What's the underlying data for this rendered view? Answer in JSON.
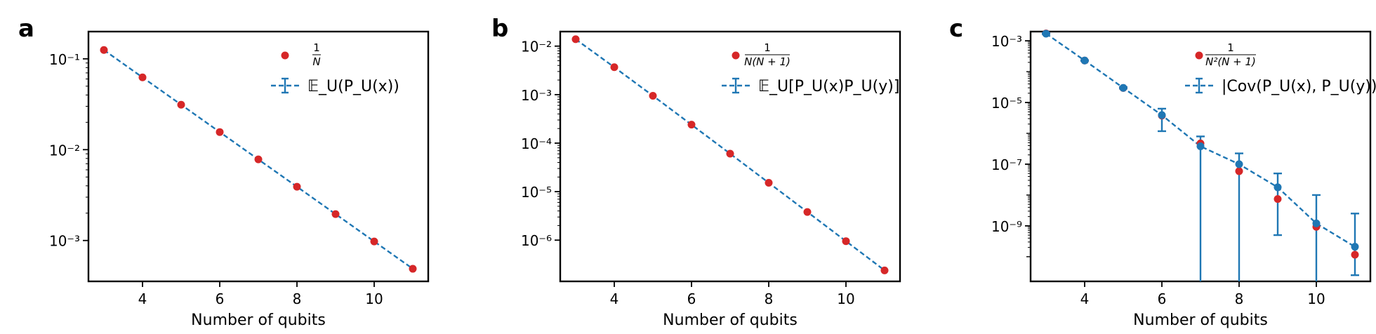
{
  "colors": {
    "dot": "#d62728",
    "line": "#1f77b4",
    "axis": "#000000"
  },
  "chart_data": [
    {
      "panel_label": "a",
      "type": "scatter",
      "yscale": "log",
      "xlabel": "Number of qubits",
      "ylabel": "",
      "xlim": [
        2.6,
        11.4
      ],
      "ylim_exp": [
        -3.45,
        -0.7
      ],
      "xticks": [
        4,
        6,
        8,
        10
      ],
      "ytick_exps": [
        -1,
        -2,
        -3
      ],
      "legend": {
        "placement": "top-right",
        "dots_label_num": "1",
        "dots_label_den": "N",
        "line_label": "𝔼_U(P_U(x))"
      },
      "series": [
        {
          "kind": "theory-dots",
          "x": [
            3,
            4,
            5,
            6,
            7,
            8,
            9,
            10,
            11
          ],
          "y": [
            0.125,
            0.0625,
            0.03125,
            0.015625,
            0.0078125,
            0.00390625,
            0.001953125,
            0.0009765625,
            0.00048828125
          ]
        },
        {
          "kind": "measured-dashed",
          "x": [
            3,
            4,
            5,
            6,
            7,
            8,
            9,
            10,
            11
          ],
          "y": [
            0.125,
            0.0625,
            0.03125,
            0.015625,
            0.0078125,
            0.00390625,
            0.001953125,
            0.0009765625,
            0.00048828125
          ]
        }
      ]
    },
    {
      "panel_label": "b",
      "type": "scatter",
      "yscale": "log",
      "xlabel": "Number of qubits",
      "ylabel": "",
      "xlim": [
        2.6,
        11.4
      ],
      "ylim_exp": [
        -6.85,
        -1.7
      ],
      "xticks": [
        4,
        6,
        8,
        10
      ],
      "ytick_exps": [
        -2,
        -3,
        -4,
        -5,
        -6
      ],
      "legend": {
        "placement": "top-right",
        "dots_label_num": "1",
        "dots_label_den": "N(N + 1)",
        "line_label": "𝔼_U[P_U(x)P_U(y)]"
      },
      "series": [
        {
          "kind": "theory-dots",
          "x": [
            3,
            4,
            5,
            6,
            7,
            8,
            9,
            10,
            11
          ],
          "y": [
            0.01389,
            0.003676,
            0.000947,
            0.0002404,
            6.06e-05,
            1.52e-05,
            3.807e-06,
            9.53e-07,
            2.38e-07
          ]
        },
        {
          "kind": "measured-dashed",
          "x": [
            3,
            4,
            5,
            6,
            7,
            8,
            9,
            10,
            11
          ],
          "y": [
            0.01389,
            0.003676,
            0.000947,
            0.0002404,
            6.06e-05,
            1.52e-05,
            3.807e-06,
            9.53e-07,
            2.38e-07
          ]
        }
      ]
    },
    {
      "panel_label": "c",
      "type": "scatter",
      "yscale": "log",
      "xlabel": "Number of qubits",
      "ylabel": "",
      "xlim": [
        2.6,
        11.4
      ],
      "ylim_exp": [
        -10.8,
        -2.7
      ],
      "xticks": [
        4,
        6,
        8,
        10
      ],
      "ytick_exps": [
        -3,
        -5,
        -7,
        -9
      ],
      "legend": {
        "placement": "top-right",
        "dots_label_num": "1",
        "dots_label_den": "N²(N + 1)",
        "line_label": "|Cov(P_U(x), P_U(y))|"
      },
      "series": [
        {
          "kind": "theory-dots",
          "x": [
            3,
            4,
            5,
            6,
            7,
            8,
            9,
            10,
            11
          ],
          "y": [
            0.001736,
            0.0002298,
            2.96e-05,
            3.76e-06,
            4.73e-07,
            5.94e-08,
            7.44e-09,
            9.31e-10,
            1.16e-10
          ]
        },
        {
          "kind": "measured-errorbars",
          "x": [
            3,
            4,
            5,
            6,
            7,
            8,
            9,
            10,
            11
          ],
          "y": [
            0.00171,
            0.00023,
            2.98e-05,
            3.9e-06,
            3.8e-07,
            1e-07,
            1.78e-08,
            1.2e-09,
            2.1e-10
          ],
          "yerr_low_exp": [
            -2.78,
            -3.65,
            -4.55,
            -5.93,
            -11,
            -11,
            -9.3,
            -11,
            -10.6
          ],
          "yerr_high_exp": [
            -2.74,
            -3.63,
            -4.5,
            -5.2,
            -6.1,
            -6.65,
            -7.3,
            -8.0,
            -8.6
          ]
        }
      ]
    }
  ]
}
